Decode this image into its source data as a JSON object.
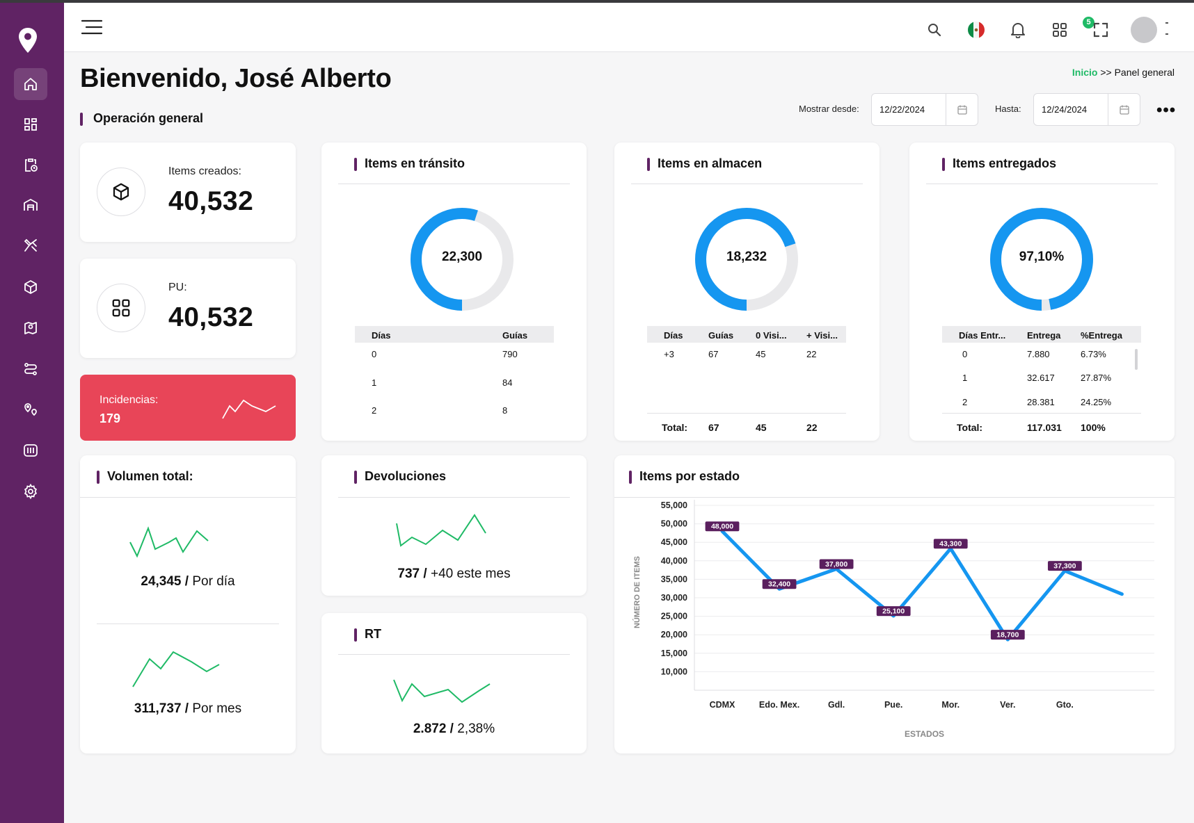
{
  "header": {
    "notifications_count": "5",
    "icons": [
      "search-icon",
      "flag-mexico-icon",
      "bell-icon",
      "apps-grid-icon",
      "fullscreen-icon"
    ]
  },
  "sidebar": {
    "items": [
      "home-icon",
      "dashboard-icon",
      "clipboard-clock-icon",
      "warehouse-icon",
      "delivery-icon",
      "box-icon",
      "map-pin-icon",
      "route-icon",
      "location-pins-icon",
      "barcode-icon",
      "gear-icon"
    ],
    "accent": "#602364"
  },
  "page": {
    "welcome": "Bienvenido, José Alberto",
    "breadcrumb_home": "Inicio",
    "breadcrumb_sep": ">>",
    "breadcrumb_current": "Panel general",
    "section_title": "Operación general",
    "date_from_label": "Mostrar desde:",
    "date_from_value": "12/22/2024",
    "date_to_label": "Hasta:",
    "date_to_value": "12/24/2024",
    "more": "•••"
  },
  "kpis": {
    "created_label": "Items creados:",
    "created_value": "40,532",
    "pu_label": "PU:",
    "pu_value": "40,532",
    "incidents_label": "Incidencias:",
    "incidents_value": "179"
  },
  "transit": {
    "title": "Items en tránsito",
    "center": "22,300",
    "fraction": 0.55,
    "headers": [
      "Días",
      "Guías"
    ],
    "rows": [
      [
        "0",
        "790"
      ],
      [
        "1",
        "84"
      ],
      [
        "2",
        "8"
      ]
    ]
  },
  "warehouse": {
    "title": "Items en almacen",
    "center": "18,232",
    "fraction": 0.7,
    "headers": [
      "Días",
      "Guías",
      "0 Visi...",
      "+ Visi..."
    ],
    "rows": [
      [
        "+3",
        "67",
        "45",
        "22"
      ]
    ],
    "total": [
      "Total:",
      "67",
      "45",
      "22"
    ]
  },
  "delivered": {
    "title": "Items entregados",
    "center": "97,10%",
    "fraction": 0.971,
    "headers": [
      "Días Entr...",
      "Entrega",
      "%Entrega"
    ],
    "rows": [
      [
        "0",
        "7.880",
        "6.73%"
      ],
      [
        "1",
        "32.617",
        "27.87%"
      ],
      [
        "2",
        "28.381",
        "24.25%"
      ]
    ],
    "total": [
      "Total:",
      "117.031",
      "100%"
    ]
  },
  "volume": {
    "title": "Volumen total:",
    "daily_value": "24,345 /",
    "daily_label": "Por día",
    "monthly_value": "311,737 /",
    "monthly_label": "Por mes"
  },
  "returns": {
    "title": "Devoluciones",
    "value": "737 /",
    "label": "+40 este mes"
  },
  "rt": {
    "title": "RT",
    "value": "2.872 /",
    "label": "2,38%"
  },
  "chart_data": {
    "type": "line",
    "title": "Items por estado",
    "xlabel": "ESTADOS",
    "ylabel": "NÚMERO DE ITEMS",
    "categories": [
      "CDMX",
      "Edo. Mex.",
      "Gdl.",
      "Pue.",
      "Mor.",
      "Ver.",
      "Gto."
    ],
    "x": [
      0,
      1,
      2,
      3,
      4,
      5,
      6,
      7
    ],
    "values": [
      48000,
      32400,
      37800,
      25100,
      43300,
      18700,
      37300,
      31000
    ],
    "point_labels": [
      "48,000",
      "32,400",
      "37,800",
      "25,100",
      "43,300",
      "18,700",
      "37,300",
      ""
    ],
    "yticks": [
      "55,000",
      "50,000",
      "45,000",
      "40,000",
      "35,000",
      "30,000",
      "25,000",
      "20,000",
      "15,000",
      "10,000"
    ],
    "ylim": [
      5000,
      55000
    ],
    "grid": true,
    "line_color": "#1596f0",
    "label_color": "#5a1f5e"
  }
}
